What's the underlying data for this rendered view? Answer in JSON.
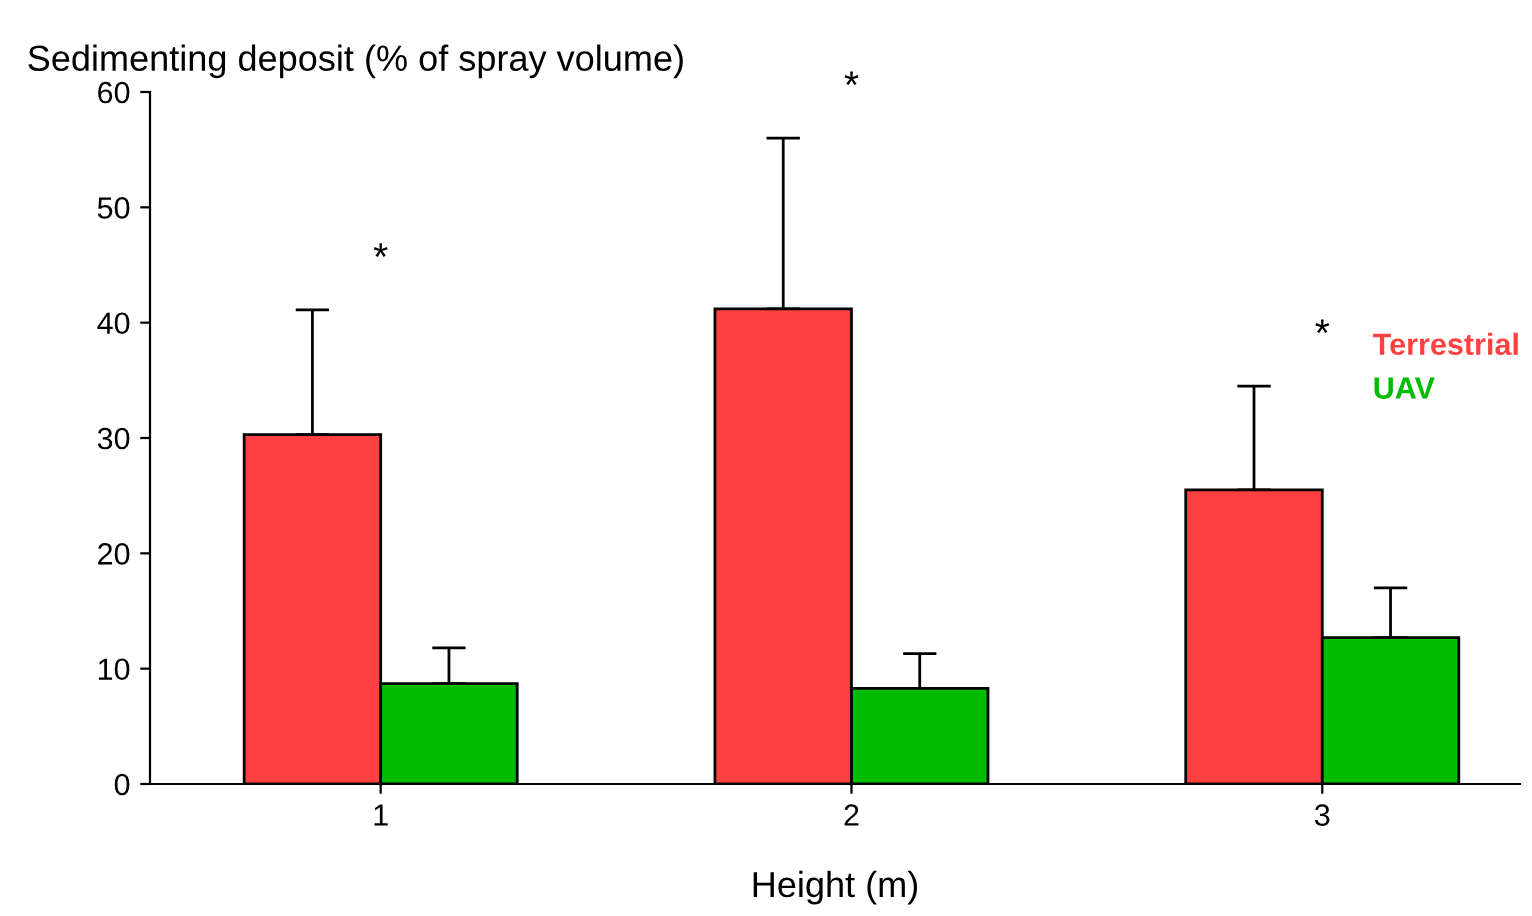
{
  "chart_data": {
    "type": "bar",
    "ylabel": "Sedimenting deposit (% of spray volume)",
    "xlabel": "Height (m)",
    "categories": [
      "1",
      "2",
      "3"
    ],
    "series": [
      {
        "name": "Terrestrial",
        "color": "#ff4040",
        "values": [
          30.3,
          41.2,
          25.5
        ],
        "errors": [
          [
            30.3,
            41.1
          ],
          [
            41.2,
            56.0
          ],
          [
            25.5,
            34.5
          ]
        ]
      },
      {
        "name": "UAV",
        "color": "#00bb00",
        "values": [
          8.7,
          8.3,
          12.7
        ],
        "errors": [
          [
            8.7,
            11.8
          ],
          [
            8.3,
            11.3
          ],
          [
            12.7,
            17.0
          ]
        ]
      }
    ],
    "ylim": [
      0,
      60
    ],
    "yticks": [
      0,
      10,
      20,
      30,
      40,
      50,
      60
    ],
    "grid": false,
    "legend": "right",
    "annotations": [
      "*",
      "*",
      "*"
    ]
  }
}
